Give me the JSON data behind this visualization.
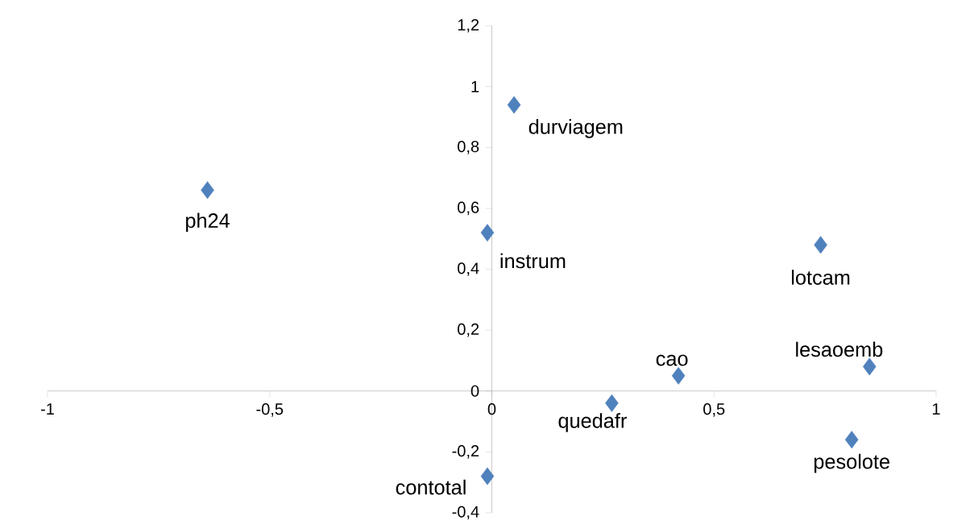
{
  "chart_data": {
    "type": "scatter",
    "marker": "diamond",
    "xlim": [
      -1,
      1
    ],
    "xticks": [
      -1,
      {
        "value": -0.5,
        "label": "-0,5"
      },
      0,
      {
        "value": 0.5,
        "label": "0,5"
      },
      1
    ],
    "ylim": [
      -0.4,
      1.2
    ],
    "yticks": [
      {
        "value": -0.4,
        "label": "-0,4"
      },
      {
        "value": -0.2,
        "label": "-0,2"
      },
      0,
      {
        "value": 0.2,
        "label": "0,2"
      },
      {
        "value": 0.4,
        "label": "0,4"
      },
      {
        "value": 0.6,
        "label": "0,6"
      },
      {
        "value": 0.8,
        "label": "0,8"
      },
      1,
      {
        "value": 1.2,
        "label": "1,2"
      }
    ],
    "series": [
      {
        "color": "#4f81bd",
        "x": [
          0.05,
          -0.64,
          -0.01,
          0.74,
          0.42,
          0.85,
          0.27,
          0.81,
          -0.01
        ],
        "values": [
          0.94,
          0.66,
          0.52,
          0.48,
          0.05,
          0.08,
          -0.04,
          -0.16,
          -0.28
        ]
      }
    ],
    "annotations": [
      {
        "text": "durviagem",
        "x": 0.05,
        "y": 0.94
      },
      {
        "text": "ph24",
        "x": -0.64,
        "y": 0.66
      },
      {
        "text": "instrum",
        "x": -0.01,
        "y": 0.52
      },
      {
        "text": "lotcam",
        "x": 0.74,
        "y": 0.48
      },
      {
        "text": "cao",
        "x": 0.42,
        "y": 0.05
      },
      {
        "text": "lesaoemb",
        "x": 0.85,
        "y": 0.08
      },
      {
        "text": "quedafr",
        "x": 0.27,
        "y": -0.04
      },
      {
        "text": "pesolote",
        "x": 0.81,
        "y": -0.16
      },
      {
        "text": "contotal",
        "x": -0.01,
        "y": -0.28
      }
    ]
  }
}
